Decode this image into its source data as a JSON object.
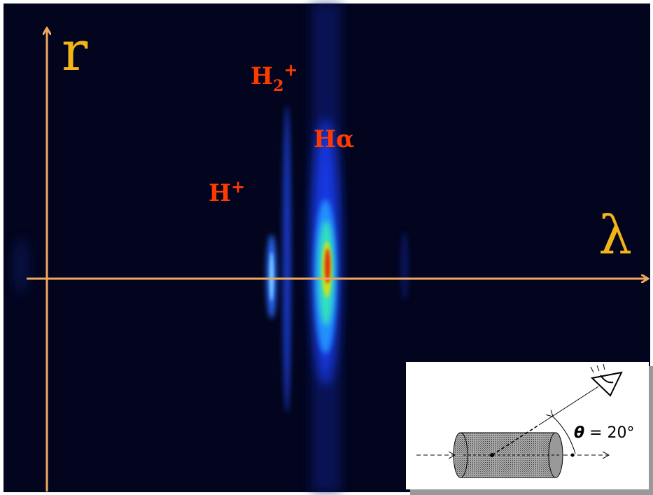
{
  "axes": {
    "vertical_label": "r",
    "horizontal_label": "λ"
  },
  "lines": [
    {
      "label": "H",
      "subscript": "2",
      "superscript": "+"
    },
    {
      "label": "Hα"
    },
    {
      "label": "H",
      "superscript": "+"
    }
  ],
  "inset": {
    "angle_symbol": "θ",
    "angle_text": "= 20°"
  }
}
